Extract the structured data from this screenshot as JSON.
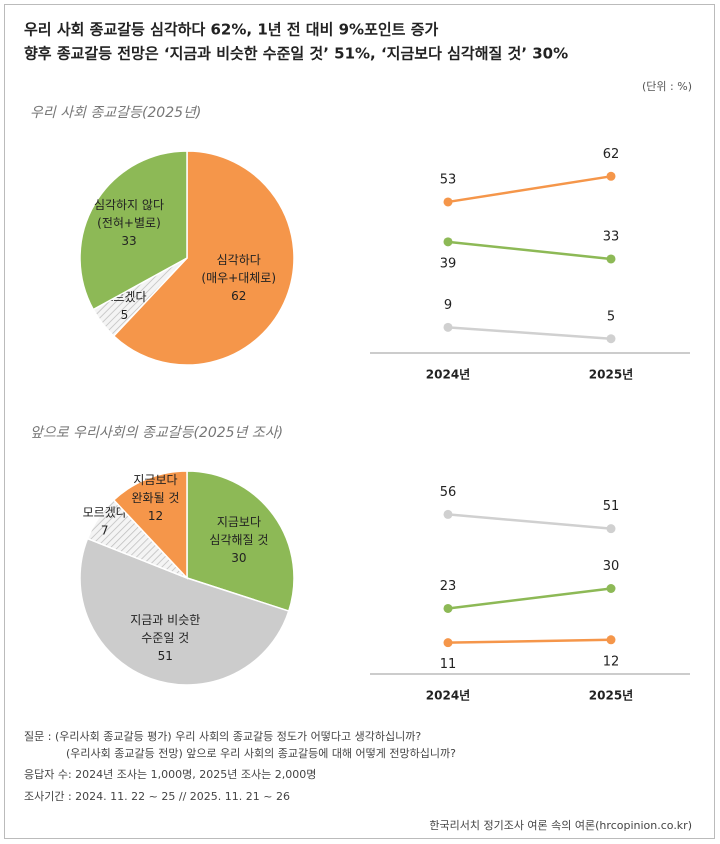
{
  "header": {
    "title": [
      "우리 사회 종교갈등 심각하다 62%, 1년 전 대비 9%포인트 증가",
      "향후 종교갈등 전망은 ‘지금과 비슷한 수준일 것’ 51%, ‘지금보다 심각해질 것’ 30%"
    ],
    "unit": "(단위 : %)"
  },
  "chart_data": [
    {
      "type": "pie",
      "title": "우리 사회 종교갈등(2025년)",
      "categories": [
        [
          "심각하다",
          "(매우+대체로)"
        ],
        [
          "모르겠다"
        ],
        [
          "심각하지 않다",
          "(전혀+별로)"
        ]
      ],
      "values": [
        62,
        5,
        33
      ],
      "colors": [
        "#f5964a",
        "#e4e4e4",
        "#8db956"
      ],
      "hatched": [
        false,
        true,
        false
      ]
    },
    {
      "type": "line",
      "categories": [
        "2024년",
        "2025년"
      ],
      "series": [
        {
          "color": "#f5964a",
          "values": [
            53,
            62
          ]
        },
        {
          "color": "#8db956",
          "values": [
            39,
            33
          ]
        },
        {
          "color": "#d0d0d0",
          "values": [
            9,
            5
          ]
        }
      ]
    },
    {
      "type": "pie",
      "title": "앞으로 우리사회의 종교갈등(2025년 조사)",
      "categories": [
        [
          "지금보다",
          "심각해질 것"
        ],
        [
          "지금과 비슷한",
          "수준일 것"
        ],
        [
          "모르겠다"
        ],
        [
          "지금보다",
          "완화될 것"
        ]
      ],
      "values": [
        30,
        51,
        7,
        12
      ],
      "colors": [
        "#8db956",
        "#cccccc",
        "#e4e4e4",
        "#f5964a"
      ],
      "hatched": [
        false,
        false,
        true,
        false
      ]
    },
    {
      "type": "line",
      "categories": [
        "2024년",
        "2025년"
      ],
      "series": [
        {
          "color": "#d0d0d0",
          "values": [
            56,
            51
          ]
        },
        {
          "color": "#8db956",
          "values": [
            23,
            30
          ]
        },
        {
          "color": "#f5964a",
          "values": [
            11,
            12
          ]
        }
      ]
    }
  ],
  "notes": {
    "question": [
      "질문 : (우리사회 종교갈등 평가) 우리 사회의 종교갈등 정도가 어떻다고 생각하십니까?",
      "(우리사회 종교갈등 전망) 앞으로 우리 사회의 종교갈등에 대해 어떻게 전망하십니까?"
    ],
    "respondents": "응답자 수: 2024년 조사는 1,000명, 2025년 조사는 2,000명",
    "period": "조사기간 : 2024. 11. 22 ~ 25 // 2025. 11. 21 ~ 26"
  },
  "source": "한국리서치 정기조사 여론 속의 여론(hrcopinion.co.kr)"
}
